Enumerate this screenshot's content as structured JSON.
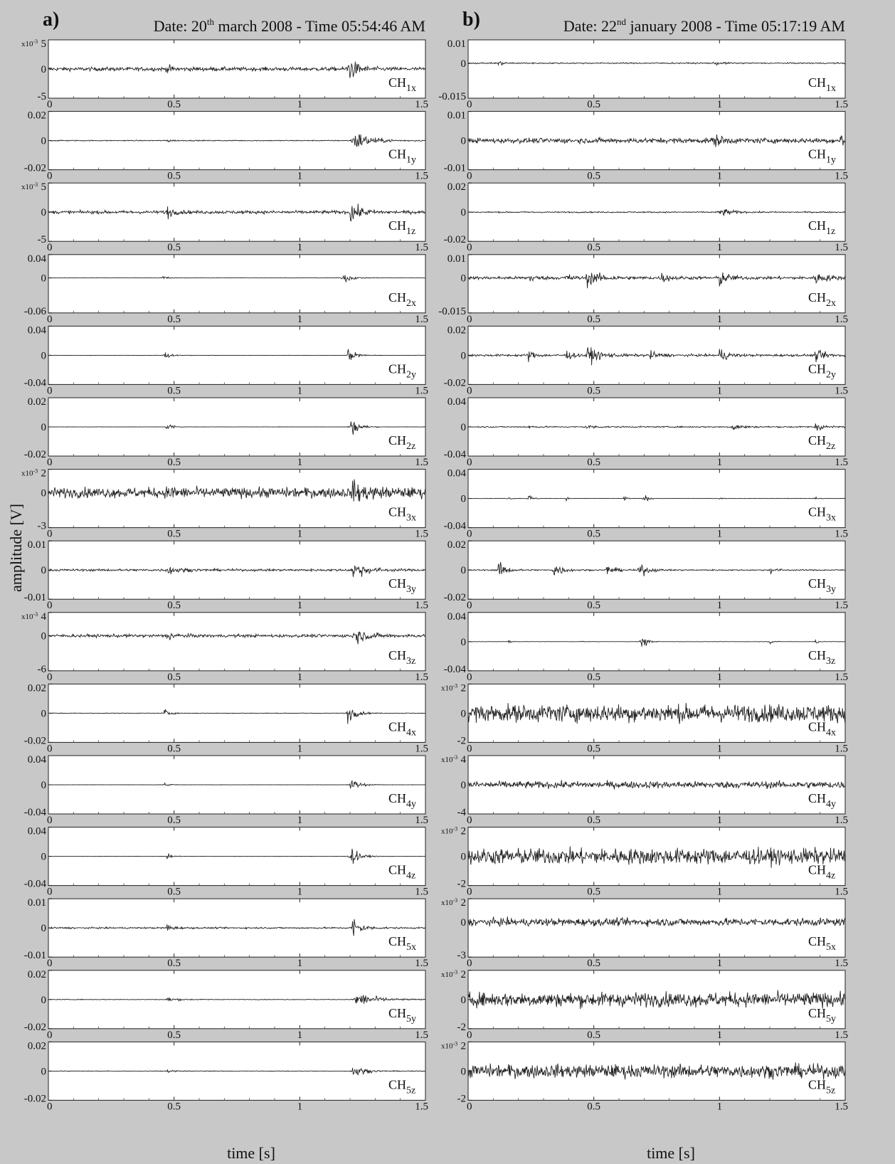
{
  "figure": {
    "ylabel": "amplitude [V]",
    "xlabel": "time [s]"
  },
  "chart_data": [
    {
      "panel": "a)",
      "title_prefix": "Date: 20",
      "title_sup": "th",
      "title_suffix": " march 2008 - Time 05:54:46 AM",
      "type": "line",
      "x_range": [
        0,
        1.5
      ],
      "x_ticks": [
        "0",
        "0.5",
        "1",
        "1.5"
      ],
      "grid": false,
      "channels": [
        {
          "name": "CH1x",
          "main": "CH",
          "sub": "1x",
          "y_ticks": [
            "5",
            "0",
            "-5"
          ],
          "y_exp": "x10",
          "y_exp_sup": "-3",
          "y_range": [
            -5,
            5
          ],
          "noise": 0.12,
          "bursts": [
            {
              "t": 1.19,
              "amp": 0.95,
              "decay": 0.03
            },
            {
              "t": 0.47,
              "amp": 0.25,
              "decay": 0.02
            }
          ]
        },
        {
          "name": "CH1y",
          "main": "CH",
          "sub": "1y",
          "y_ticks": [
            "0.02",
            "0",
            "-0.02"
          ],
          "y_range": [
            -0.02,
            0.02
          ],
          "noise": 0.03,
          "bursts": [
            {
              "t": 1.21,
              "amp": 0.75,
              "decay": 0.06
            },
            {
              "t": 0.47,
              "amp": 0.1,
              "decay": 0.02
            }
          ]
        },
        {
          "name": "CH1z",
          "main": "CH",
          "sub": "1z",
          "y_ticks": [
            "5",
            "0",
            "-5"
          ],
          "y_exp": "x10",
          "y_exp_sup": "-3",
          "y_range": [
            -5,
            5
          ],
          "noise": 0.1,
          "bursts": [
            {
              "t": 0.47,
              "amp": 0.45,
              "decay": 0.02
            },
            {
              "t": 1.2,
              "amp": 0.65,
              "decay": 0.04
            }
          ]
        },
        {
          "name": "CH2x",
          "main": "CH",
          "sub": "2x",
          "y_ticks": [
            "0.04",
            "0",
            "-0.06"
          ],
          "y_range": [
            -0.06,
            0.04
          ],
          "noise": 0.01,
          "bursts": [
            {
              "t": 0.45,
              "amp": 0.25,
              "decay": 0.02
            },
            {
              "t": 1.17,
              "amp": 0.55,
              "decay": 0.03
            }
          ]
        },
        {
          "name": "CH2y",
          "main": "CH",
          "sub": "2y",
          "y_ticks": [
            "0.04",
            "0",
            "-0.04"
          ],
          "y_range": [
            -0.04,
            0.04
          ],
          "noise": 0.01,
          "bursts": [
            {
              "t": 0.46,
              "amp": 0.3,
              "decay": 0.02
            },
            {
              "t": 1.19,
              "amp": 0.5,
              "decay": 0.03
            }
          ]
        },
        {
          "name": "CH2z",
          "main": "CH",
          "sub": "2z",
          "y_ticks": [
            "0.02",
            "0",
            "-0.02"
          ],
          "y_range": [
            -0.02,
            0.02
          ],
          "noise": 0.01,
          "bursts": [
            {
              "t": 0.47,
              "amp": 0.4,
              "decay": 0.02
            },
            {
              "t": 1.2,
              "amp": 0.7,
              "decay": 0.03
            }
          ]
        },
        {
          "name": "CH3x",
          "main": "CH",
          "sub": "3x",
          "y_ticks": [
            "2",
            "0",
            "-3"
          ],
          "y_exp": "x10",
          "y_exp_sup": "-3",
          "y_range": [
            -3,
            2
          ],
          "noise": 0.4,
          "bursts": [
            {
              "t": 1.21,
              "amp": 0.6,
              "decay": 0.06
            },
            {
              "t": 0.47,
              "amp": 0.3,
              "decay": 0.04
            }
          ]
        },
        {
          "name": "CH3y",
          "main": "CH",
          "sub": "3y",
          "y_ticks": [
            "0.01",
            "0",
            "-0.01"
          ],
          "y_range": [
            -0.01,
            0.01
          ],
          "noise": 0.07,
          "bursts": [
            {
              "t": 0.47,
              "amp": 0.3,
              "decay": 0.04
            },
            {
              "t": 1.21,
              "amp": 0.6,
              "decay": 0.05
            }
          ]
        },
        {
          "name": "CH3z",
          "main": "CH",
          "sub": "3z",
          "y_ticks": [
            "4",
            "0",
            "-6"
          ],
          "y_exp": "x10",
          "y_exp_sup": "-3",
          "y_range": [
            -6,
            4
          ],
          "noise": 0.12,
          "bursts": [
            {
              "t": 0.47,
              "amp": 0.35,
              "decay": 0.03
            },
            {
              "t": 1.21,
              "amp": 0.65,
              "decay": 0.05
            }
          ]
        },
        {
          "name": "CH4x",
          "main": "CH",
          "sub": "4x",
          "y_ticks": [
            "0.02",
            "0",
            "-0.02"
          ],
          "y_range": [
            -0.02,
            0.02
          ],
          "noise": 0.02,
          "bursts": [
            {
              "t": 0.46,
              "amp": 0.3,
              "decay": 0.02
            },
            {
              "t": 1.19,
              "amp": 0.65,
              "decay": 0.03
            }
          ]
        },
        {
          "name": "CH4y",
          "main": "CH",
          "sub": "4y",
          "y_ticks": [
            "0.04",
            "0",
            "-0.04"
          ],
          "y_range": [
            -0.04,
            0.04
          ],
          "noise": 0.01,
          "bursts": [
            {
              "t": 0.46,
              "amp": 0.15,
              "decay": 0.02
            },
            {
              "t": 1.2,
              "amp": 0.5,
              "decay": 0.03
            }
          ]
        },
        {
          "name": "CH4z",
          "main": "CH",
          "sub": "4z",
          "y_ticks": [
            "0.04",
            "0",
            "-0.04"
          ],
          "y_range": [
            -0.04,
            0.04
          ],
          "noise": 0.01,
          "bursts": [
            {
              "t": 0.47,
              "amp": 0.2,
              "decay": 0.02
            },
            {
              "t": 1.2,
              "amp": 0.7,
              "decay": 0.03
            }
          ]
        },
        {
          "name": "CH5x",
          "main": "CH",
          "sub": "5x",
          "y_ticks": [
            "0.01",
            "0",
            "-0.01"
          ],
          "y_range": [
            -0.01,
            0.01
          ],
          "noise": 0.05,
          "bursts": [
            {
              "t": 0.47,
              "amp": 0.3,
              "decay": 0.02
            },
            {
              "t": 1.21,
              "amp": 0.75,
              "decay": 0.03
            }
          ]
        },
        {
          "name": "CH5y",
          "main": "CH",
          "sub": "5y",
          "y_ticks": [
            "0.02",
            "0",
            "-0.02"
          ],
          "y_range": [
            -0.02,
            0.02
          ],
          "noise": 0.02,
          "bursts": [
            {
              "t": 0.47,
              "amp": 0.15,
              "decay": 0.04
            },
            {
              "t": 1.22,
              "amp": 0.55,
              "decay": 0.07
            }
          ]
        },
        {
          "name": "CH5z",
          "main": "CH",
          "sub": "5z",
          "y_ticks": [
            "0.02",
            "0",
            "-0.02"
          ],
          "y_range": [
            -0.02,
            0.02
          ],
          "noise": 0.02,
          "bursts": [
            {
              "t": 0.47,
              "amp": 0.1,
              "decay": 0.03
            },
            {
              "t": 1.21,
              "amp": 0.45,
              "decay": 0.04
            }
          ]
        }
      ]
    },
    {
      "panel": "b)",
      "title_prefix": "Date: 22",
      "title_sup": "nd",
      "title_suffix": " january 2008 - Time 05:17:19 AM",
      "type": "line",
      "x_range": [
        0,
        1.5
      ],
      "x_ticks": [
        "0",
        "0.5",
        "1",
        "1.5"
      ],
      "grid": false,
      "channels": [
        {
          "name": "CH1x",
          "main": "CH",
          "sub": "1x",
          "y_ticks": [
            "0.01",
            "0",
            "-0.015"
          ],
          "y_range": [
            -0.015,
            0.01
          ],
          "noise": 0.05,
          "bursts": [
            {
              "t": 0.12,
              "amp": 0.2,
              "decay": 0.02
            },
            {
              "t": 0.98,
              "amp": 0.12,
              "decay": 0.03
            }
          ]
        },
        {
          "name": "CH1y",
          "main": "CH",
          "sub": "1y",
          "y_ticks": [
            "0.01",
            "0",
            "-0.01"
          ],
          "y_range": [
            -0.01,
            0.01
          ],
          "noise": 0.16,
          "bursts": [
            {
              "t": 0.98,
              "amp": 0.4,
              "decay": 0.03
            },
            {
              "t": 1.48,
              "amp": 0.35,
              "decay": 0.04
            }
          ]
        },
        {
          "name": "CH1z",
          "main": "CH",
          "sub": "1z",
          "y_ticks": [
            "0.02",
            "0",
            "-0.02"
          ],
          "y_range": [
            -0.02,
            0.02
          ],
          "noise": 0.04,
          "bursts": [
            {
              "t": 1.0,
              "amp": 0.3,
              "decay": 0.04
            }
          ]
        },
        {
          "name": "CH2x",
          "main": "CH",
          "sub": "2x",
          "y_ticks": [
            "0.01",
            "0",
            "-0.015"
          ],
          "y_range": [
            -0.015,
            0.01
          ],
          "noise": 0.12,
          "bursts": [
            {
              "t": 0.24,
              "amp": 0.4,
              "decay": 0.02
            },
            {
              "t": 0.39,
              "amp": 0.35,
              "decay": 0.02
            },
            {
              "t": 0.47,
              "amp": 0.6,
              "decay": 0.05
            },
            {
              "t": 0.77,
              "amp": 0.35,
              "decay": 0.03
            },
            {
              "t": 1.0,
              "amp": 0.65,
              "decay": 0.03
            },
            {
              "t": 1.38,
              "amp": 0.45,
              "decay": 0.04
            }
          ]
        },
        {
          "name": "CH2y",
          "main": "CH",
          "sub": "2y",
          "y_ticks": [
            "0.02",
            "0",
            "-0.02"
          ],
          "y_range": [
            -0.02,
            0.02
          ],
          "noise": 0.07,
          "bursts": [
            {
              "t": 0.24,
              "amp": 0.35,
              "decay": 0.02
            },
            {
              "t": 0.39,
              "amp": 0.35,
              "decay": 0.02
            },
            {
              "t": 0.47,
              "amp": 0.55,
              "decay": 0.05
            },
            {
              "t": 0.72,
              "amp": 0.3,
              "decay": 0.03
            },
            {
              "t": 1.0,
              "amp": 0.45,
              "decay": 0.03
            },
            {
              "t": 1.38,
              "amp": 0.35,
              "decay": 0.04
            }
          ]
        },
        {
          "name": "CH2z",
          "main": "CH",
          "sub": "2z",
          "y_ticks": [
            "0.04",
            "0",
            "-0.04"
          ],
          "y_range": [
            -0.04,
            0.04
          ],
          "noise": 0.04,
          "bursts": [
            {
              "t": 0.24,
              "amp": 0.12,
              "decay": 0.02
            },
            {
              "t": 0.47,
              "amp": 0.15,
              "decay": 0.03
            },
            {
              "t": 1.05,
              "amp": 0.3,
              "decay": 0.03
            },
            {
              "t": 1.38,
              "amp": 0.3,
              "decay": 0.03
            }
          ]
        },
        {
          "name": "CH3x",
          "main": "CH",
          "sub": "3x",
          "y_ticks": [
            "0.04",
            "0",
            "-0.04"
          ],
          "y_range": [
            -0.04,
            0.04
          ],
          "noise": 0.01,
          "bursts": [
            {
              "t": 0.16,
              "amp": 0.12,
              "decay": 0.01
            },
            {
              "t": 0.24,
              "amp": 0.3,
              "decay": 0.015
            },
            {
              "t": 0.39,
              "amp": 0.12,
              "decay": 0.01
            },
            {
              "t": 0.62,
              "amp": 0.18,
              "decay": 0.01
            },
            {
              "t": 0.7,
              "amp": 0.3,
              "decay": 0.015
            },
            {
              "t": 1.0,
              "amp": 0.1,
              "decay": 0.01
            },
            {
              "t": 1.38,
              "amp": 0.15,
              "decay": 0.01
            }
          ]
        },
        {
          "name": "CH3y",
          "main": "CH",
          "sub": "3y",
          "y_ticks": [
            "0.02",
            "0",
            "-0.02"
          ],
          "y_range": [
            -0.02,
            0.02
          ],
          "noise": 0.04,
          "bursts": [
            {
              "t": 0.12,
              "amp": 0.55,
              "decay": 0.03
            },
            {
              "t": 0.34,
              "amp": 0.55,
              "decay": 0.03
            },
            {
              "t": 0.55,
              "amp": 0.35,
              "decay": 0.03
            },
            {
              "t": 0.68,
              "amp": 0.5,
              "decay": 0.03
            },
            {
              "t": 1.2,
              "amp": 0.25,
              "decay": 0.02
            }
          ]
        },
        {
          "name": "CH3z",
          "main": "CH",
          "sub": "3z",
          "y_ticks": [
            "0.04",
            "0",
            "-0.04"
          ],
          "y_range": [
            -0.04,
            0.04
          ],
          "noise": 0.01,
          "bursts": [
            {
              "t": 0.16,
              "amp": 0.12,
              "decay": 0.01
            },
            {
              "t": 0.45,
              "amp": 0.12,
              "decay": 0.01
            },
            {
              "t": 0.69,
              "amp": 0.7,
              "decay": 0.015
            },
            {
              "t": 1.2,
              "amp": 0.2,
              "decay": 0.01
            },
            {
              "t": 1.38,
              "amp": 0.25,
              "decay": 0.01
            }
          ]
        },
        {
          "name": "CH4x",
          "main": "CH",
          "sub": "4x",
          "y_ticks": [
            "2",
            "0",
            "-2"
          ],
          "y_exp": "x10",
          "y_exp_sup": "-3",
          "y_range": [
            -2,
            2
          ],
          "noise": 0.55,
          "bursts": []
        },
        {
          "name": "CH4y",
          "main": "CH",
          "sub": "4y",
          "y_ticks": [
            "4",
            "0",
            "-4"
          ],
          "y_exp": "x10",
          "y_exp_sup": "-3",
          "y_range": [
            -4,
            4
          ],
          "noise": 0.22,
          "bursts": []
        },
        {
          "name": "CH4z",
          "main": "CH",
          "sub": "4z",
          "y_ticks": [
            "2",
            "0",
            "-2"
          ],
          "y_exp": "x10",
          "y_exp_sup": "-3",
          "y_range": [
            -2,
            2
          ],
          "noise": 0.5,
          "bursts": []
        },
        {
          "name": "CH5x",
          "main": "CH",
          "sub": "5x",
          "y_ticks": [
            "2",
            "0",
            "-3"
          ],
          "y_exp": "x10",
          "y_exp_sup": "-3",
          "y_range": [
            -3,
            2
          ],
          "noise": 0.3,
          "bursts": []
        },
        {
          "name": "CH5y",
          "main": "CH",
          "sub": "5y",
          "y_ticks": [
            "2",
            "0",
            "-2"
          ],
          "y_exp": "x10",
          "y_exp_sup": "-3",
          "y_range": [
            -2,
            2
          ],
          "noise": 0.45,
          "bursts": []
        },
        {
          "name": "CH5z",
          "main": "CH",
          "sub": "5z",
          "y_ticks": [
            "2",
            "0",
            "-2"
          ],
          "y_exp": "x10",
          "y_exp_sup": "-3",
          "y_range": [
            -2,
            2
          ],
          "noise": 0.42,
          "bursts": []
        }
      ]
    }
  ]
}
